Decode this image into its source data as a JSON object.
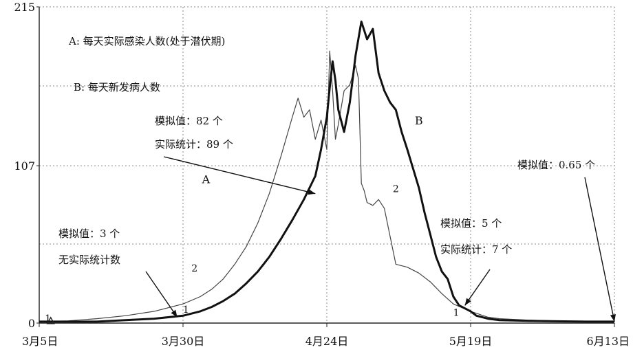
{
  "chart_data": {
    "type": "line",
    "title": "",
    "xlabel": "",
    "ylabel": "",
    "y_ticks": [
      "0",
      "107",
      "215"
    ],
    "ylim": [
      0,
      215
    ],
    "x_ticks": [
      "3月5日",
      "3月30日",
      "4月24日",
      "5月19日",
      "6月13日"
    ],
    "x_tick_days": [
      0,
      25,
      50,
      75,
      100
    ],
    "xlim": [
      0,
      100
    ],
    "grid": true,
    "legend": [
      "A: 每天实际感染人数(处于潜伏期)",
      "B: 每天新发病人数"
    ],
    "series": [
      {
        "name": "A",
        "style": "thin",
        "x": [
          0,
          5,
          10,
          15,
          20,
          25,
          28,
          30,
          32,
          34,
          36,
          38,
          40,
          42,
          44,
          45,
          46,
          47,
          48,
          49,
          50,
          50.5,
          51,
          51.5,
          52,
          53,
          54,
          55,
          55.5,
          56,
          56.5,
          57,
          58,
          59,
          60,
          62,
          64,
          66,
          68,
          70,
          72,
          75,
          78,
          80,
          85,
          90,
          95,
          100
        ],
        "y": [
          1,
          1.5,
          3,
          5,
          8,
          13,
          18,
          23,
          30,
          40,
          52,
          68,
          88,
          113,
          140,
          153,
          140,
          145,
          125,
          138,
          118,
          185,
          158,
          125,
          135,
          158,
          162,
          175,
          166,
          95,
          90,
          82,
          80,
          84,
          78,
          40,
          38,
          34,
          28,
          20,
          13,
          8,
          4,
          3,
          2,
          1.5,
          1,
          0.6
        ]
      },
      {
        "name": "B",
        "style": "thick",
        "x": [
          0,
          5,
          10,
          15,
          20,
          25,
          28,
          30,
          32,
          34,
          36,
          38,
          40,
          42,
          44,
          46,
          48,
          49,
          50,
          50.5,
          51,
          51.5,
          52,
          53,
          54,
          55,
          56,
          57,
          58,
          59,
          60,
          61,
          62,
          63,
          64,
          65,
          66,
          67,
          68,
          69,
          70,
          71,
          72,
          73,
          74,
          75,
          76,
          78,
          80,
          85,
          90,
          95,
          100
        ],
        "y": [
          1,
          1,
          1,
          2,
          3,
          5,
          8,
          11,
          15,
          20,
          27,
          35,
          45,
          57,
          70,
          84,
          100,
          118,
          140,
          160,
          178,
          165,
          145,
          130,
          150,
          182,
          205,
          193,
          200,
          170,
          158,
          150,
          145,
          130,
          118,
          105,
          92,
          75,
          60,
          45,
          35,
          30,
          18,
          12,
          10,
          8,
          5,
          3,
          2,
          1.5,
          1.2,
          1,
          1
        ]
      }
    ],
    "curve_labels": [
      {
        "text": "A",
        "x": 29,
        "y": 95
      },
      {
        "text": "B",
        "x": 66,
        "y": 135
      }
    ],
    "segment_labels": [
      {
        "text": "1",
        "x": 1.5,
        "y": 1
      },
      {
        "text": "1",
        "x": 25.5,
        "y": 7
      },
      {
        "text": "1",
        "x": 72.5,
        "y": 5
      },
      {
        "text": "2",
        "x": 27,
        "y": 35
      },
      {
        "text": "2",
        "x": 62,
        "y": 89
      }
    ],
    "annotations": [
      {
        "lines": [
          "模拟值：82 个",
          "实际统计：89 个"
        ],
        "arrow_to": {
          "x": 48,
          "y": 88
        }
      },
      {
        "lines": [
          "模拟值：3 个",
          "无实际统计数"
        ],
        "arrow_to": {
          "x": 24,
          "y": 4
        }
      },
      {
        "lines": [
          "模拟值：5 个",
          "实际统计：7 个"
        ],
        "arrow_to": {
          "x": 74,
          "y": 12
        }
      },
      {
        "lines": [
          "模拟值：0.65 个"
        ],
        "arrow_to": {
          "x": 100,
          "y": 1
        }
      }
    ]
  }
}
